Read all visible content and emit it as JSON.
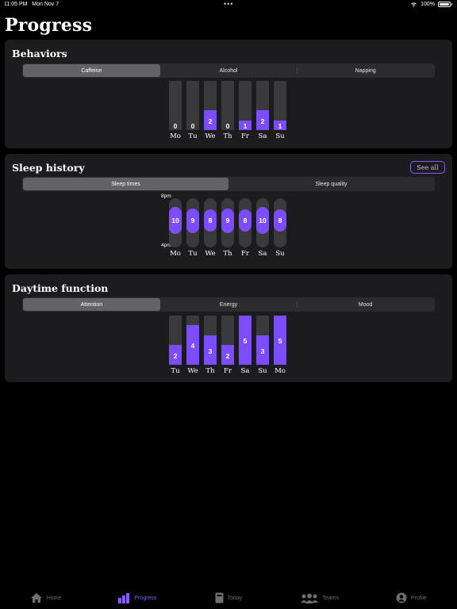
{
  "status_bar": {
    "time": "11:05 PM",
    "date": "Mon Nov 7",
    "battery": "100%"
  },
  "page_title": "Progress",
  "behaviors": {
    "title": "Behaviors",
    "tabs": [
      "Caffeine",
      "Alcohol",
      "Napping"
    ],
    "selected_tab": "Caffeine",
    "days": [
      "Mo",
      "Tu",
      "We",
      "Th",
      "Fr",
      "Sa",
      "Su"
    ],
    "values": [
      0,
      0,
      2,
      0,
      1,
      2,
      1
    ],
    "max": 5
  },
  "sleep_history": {
    "title": "Sleep history",
    "see_all_label": "See all",
    "tabs": [
      "Sleep times",
      "Sleep quality"
    ],
    "selected_tab": "Sleep times",
    "axis_top": "8pm",
    "axis_bottom": "4pm",
    "days": [
      "Mo",
      "Tu",
      "We",
      "Th",
      "Fr",
      "Sa",
      "Su"
    ],
    "values": [
      10,
      9,
      8,
      9,
      8,
      10,
      8
    ]
  },
  "daytime_function": {
    "title": "Daytime function",
    "tabs": [
      "Attention",
      "Energy",
      "Mood"
    ],
    "selected_tab": "Attention",
    "days": [
      "Tu",
      "We",
      "Th",
      "Fr",
      "Sa",
      "Su",
      "Mo"
    ],
    "values": [
      2,
      4,
      3,
      2,
      5,
      3,
      5
    ],
    "max": 5
  },
  "tab_bar": [
    {
      "label": "Home",
      "icon": "home-icon",
      "active": false
    },
    {
      "label": "Progress",
      "icon": "bar-chart-icon",
      "active": true
    },
    {
      "label": "Today",
      "icon": "journal-icon",
      "active": false
    },
    {
      "label": "Teams",
      "icon": "people-icon",
      "active": false
    },
    {
      "label": "Profile",
      "icon": "person-circle-icon",
      "active": false
    }
  ],
  "colors": {
    "accent": "#7c4dff",
    "card": "#1c1c1e",
    "track": "#3a3a3c"
  }
}
